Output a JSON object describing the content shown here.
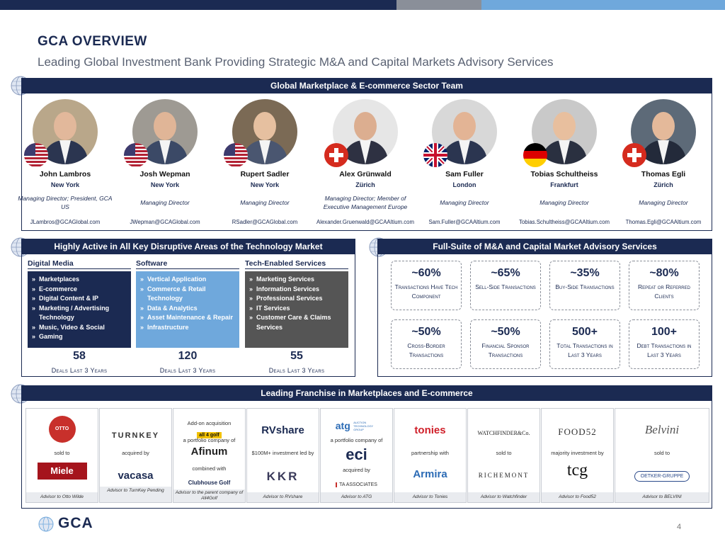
{
  "colors": {
    "navy": "#1b2a52",
    "light_blue": "#6fa8dc",
    "gray": "#555555",
    "green": "#4f7f2c"
  },
  "header": {
    "title": "GCA OVERVIEW",
    "subtitle": "Leading Global Investment Bank Providing Strategic M&A and Capital Markets Advisory Services"
  },
  "team": {
    "heading": "Global Marketplace & E-commerce Sector Team",
    "people": [
      {
        "name": "John Lambros",
        "city": "New York",
        "role": "Managing Director; President, GCA US",
        "email": "JLambros@GCAGlobal.com",
        "flag": "us-flag-icon"
      },
      {
        "name": "Josh Wepman",
        "city": "New York",
        "role": "Managing Director",
        "email": "JWepman@GCAGlobal.com",
        "flag": "us-flag-icon"
      },
      {
        "name": "Rupert Sadler",
        "city": "New York",
        "role": "Managing Director",
        "email": "RSadler@GCAGlobal.com",
        "flag": "us-flag-icon"
      },
      {
        "name": "Alex Grünwald",
        "city": "Zürich",
        "role": "Managing Director; Member of Executive Management Europe",
        "email": "Alexander.Gruenwald@GCAAltium.com",
        "flag": "swiss-flag-icon"
      },
      {
        "name": "Sam Fuller",
        "city": "London",
        "role": "Managing Director",
        "email": "Sam.Fuller@GCAAltium.com",
        "flag": "uk-flag-icon"
      },
      {
        "name": "Tobias Schultheiss",
        "city": "Frankfurt",
        "role": "Managing Director",
        "email": "Tobias.Schultheiss@GCAAltium.com",
        "flag": "german-flag-icon"
      },
      {
        "name": "Thomas Egli",
        "city": "Zürich",
        "role": "Managing Director",
        "email": "Thomas.Egli@GCAAltium.com",
        "flag": "swiss-flag-icon"
      }
    ]
  },
  "disruptive": {
    "heading": "Highly Active in All Key Disruptive Areas of the Technology Market",
    "columns": [
      {
        "title": "Digital Media",
        "items": [
          "Marketplaces",
          "E-commerce",
          "Digital Content & IP",
          "Marketing / Advertising Technology",
          "Music, Video & Social",
          "Gaming"
        ],
        "deals": "58",
        "deals_label": "Deals Last 3 Years"
      },
      {
        "title": "Software",
        "items": [
          "Vertical Application",
          "Commerce & Retail Technology",
          "Data & Analytics",
          "Asset Maintenance & Repair",
          "Infrastructure"
        ],
        "deals": "120",
        "deals_label": "Deals Last 3 Years"
      },
      {
        "title": "Tech-Enabled Services",
        "items": [
          "Marketing Services",
          "Information Services",
          "Professional Services",
          "IT Services",
          "Customer Care & Claims Services"
        ],
        "deals": "55",
        "deals_label": "Deals Last 3 Years"
      }
    ]
  },
  "advisory": {
    "heading": "Full-Suite of M&A and Capital Market Advisory Services",
    "stats": [
      {
        "value": "~60%",
        "label": "Transactions Have Tech Component"
      },
      {
        "value": "~65%",
        "label": "Sell-Side Transactions"
      },
      {
        "value": "~35%",
        "label": "Buy-Side Transactions"
      },
      {
        "value": "~80%",
        "label": "Repeat or Referred Clients"
      },
      {
        "value": "~50%",
        "label": "Cross-Border Transactions"
      },
      {
        "value": "~50%",
        "label": "Financial Sponsor Transactions"
      },
      {
        "value": "500+",
        "label": "Total Transactions in Last 3 Years"
      },
      {
        "value": "100+",
        "label": "Debt Transactions in Last 3 Years"
      }
    ]
  },
  "franchise": {
    "heading": "Leading Franchise in Marketplaces and E-commerce",
    "tiles": [
      {
        "top_note": "",
        "logo1": "OTTO WILDE",
        "mid": "sold to",
        "logo2": "Miele",
        "bottom_note": "",
        "advisor": "Advisor to Otto Wilde"
      },
      {
        "top_note": "",
        "logo1": "TURNKEY",
        "mid": "acquired by",
        "logo2": "vacasa",
        "bottom_note": "",
        "advisor": "Advisor to TurnKey Pending"
      },
      {
        "top_note": "Add-on acquisition",
        "logo1": "all 4 golf",
        "mid": "a portfolio company of",
        "logo2": "Afinum",
        "bottom_note": "combined with",
        "logo3": "Clubhouse Golf",
        "advisor": "Advisor to the parent company of All4Golf"
      },
      {
        "top_note": "",
        "logo1": "RVshare",
        "mid": "$100M+ investment led by",
        "logo2": "KKR",
        "bottom_note": "",
        "advisor": "Advisor to RVshare"
      },
      {
        "top_note": "",
        "logo1": "atg",
        "logo1_sub": "AUCTION TECHNOLOGY GROUP",
        "mid": "a portfolio company of",
        "logo2": "eci",
        "bottom_note": "acquired by",
        "logo3": "TA ASSOCIATES",
        "advisor": "Advisor to ATG"
      },
      {
        "top_note": "",
        "logo1": "tonies",
        "mid": "partnership with",
        "logo2": "Armira",
        "bottom_note": "",
        "advisor": "Advisor to Tonies"
      },
      {
        "top_note": "",
        "logo1": "WATCHFINDER&Co.",
        "mid": "sold to",
        "logo2": "RICHEMONT",
        "bottom_note": "",
        "advisor": "Advisor to Watchfinder"
      },
      {
        "top_note": "",
        "logo1": "FOOD52",
        "mid": "majority investment by",
        "logo2": "tcg",
        "bottom_note": "",
        "advisor": "Advisor to Food52"
      },
      {
        "top_note": "",
        "logo1": "Belvini",
        "mid": "sold to",
        "logo2": "OETKER-GRUPPE",
        "bottom_note": "",
        "advisor": "Advisor to BELVINI"
      }
    ]
  },
  "footer": {
    "logo": "GCA",
    "page": "4"
  }
}
